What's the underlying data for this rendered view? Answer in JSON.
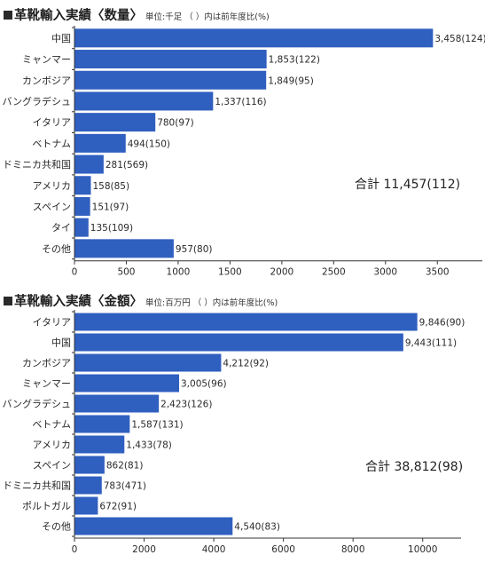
{
  "chart_data": [
    {
      "type": "bar",
      "orientation": "horizontal",
      "title": "革靴輸入実績〈数量〉",
      "note": "単位:千足 （ ）内は前年度比(%)",
      "categories": [
        "中国",
        "ミャンマー",
        "カンボジア",
        "バングラデシュ",
        "イタリア",
        "ベトナム",
        "ドミニカ共和国",
        "アメリカ",
        "スペイン",
        "タイ",
        "その他"
      ],
      "values": [
        3458,
        1853,
        1849,
        1337,
        780,
        494,
        281,
        158,
        151,
        135,
        957
      ],
      "labels": [
        "3,458(124)",
        "1,853(122)",
        "1,849(95)",
        "1,337(116)",
        "780(97)",
        "494(150)",
        "281(569)",
        "158(85)",
        "151(97)",
        "135(109)",
        "957(80)"
      ],
      "xticks": [
        "0",
        "500",
        "1000",
        "1500",
        "2000",
        "2500",
        "3000",
        "3500"
      ],
      "xlim": [
        0,
        3900
      ],
      "total": "合計 11,457(112)",
      "bar_color": "#2f5fbf"
    },
    {
      "type": "bar",
      "orientation": "horizontal",
      "title": "革靴輸入実績〈金額〉",
      "note": "単位:百万円 （ ）内は前年度比(%)",
      "categories": [
        "イタリア",
        "中国",
        "カンボジア",
        "ミャンマー",
        "バングラデシュ",
        "ベトナム",
        "アメリカ",
        "スペイン",
        "ドミニカ共和国",
        "ポルトガル",
        "その他"
      ],
      "values": [
        9846,
        9443,
        4212,
        3005,
        2423,
        1587,
        1433,
        862,
        783,
        672,
        4540
      ],
      "labels": [
        "9,846(90)",
        "9,443(111)",
        "4,212(92)",
        "3,005(96)",
        "2,423(126)",
        "1,587(131)",
        "1,433(78)",
        "862(81)",
        "783(471)",
        "672(91)",
        "4,540(83)"
      ],
      "xticks": [
        "0",
        "2000",
        "4000",
        "6000",
        "8000",
        "10000"
      ],
      "xlim": [
        0,
        11000
      ],
      "total": "合計 38,812(98)",
      "bar_color": "#2f5fbf"
    }
  ]
}
